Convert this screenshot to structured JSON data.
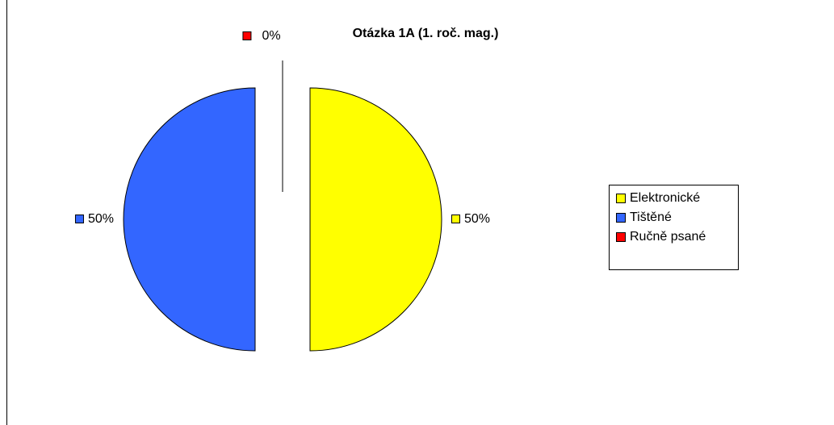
{
  "chart_data": {
    "type": "pie",
    "title": "Otázka 1A (1. roč. mag.)",
    "categories": [
      "Elektronické",
      "Tištěné",
      "Ručně psané"
    ],
    "values": [
      50,
      50,
      0
    ],
    "value_labels": [
      "50%",
      "50%",
      "0%"
    ],
    "colors": [
      "#ffff00",
      "#3366ff",
      "#ff0000"
    ],
    "legend": "right"
  }
}
